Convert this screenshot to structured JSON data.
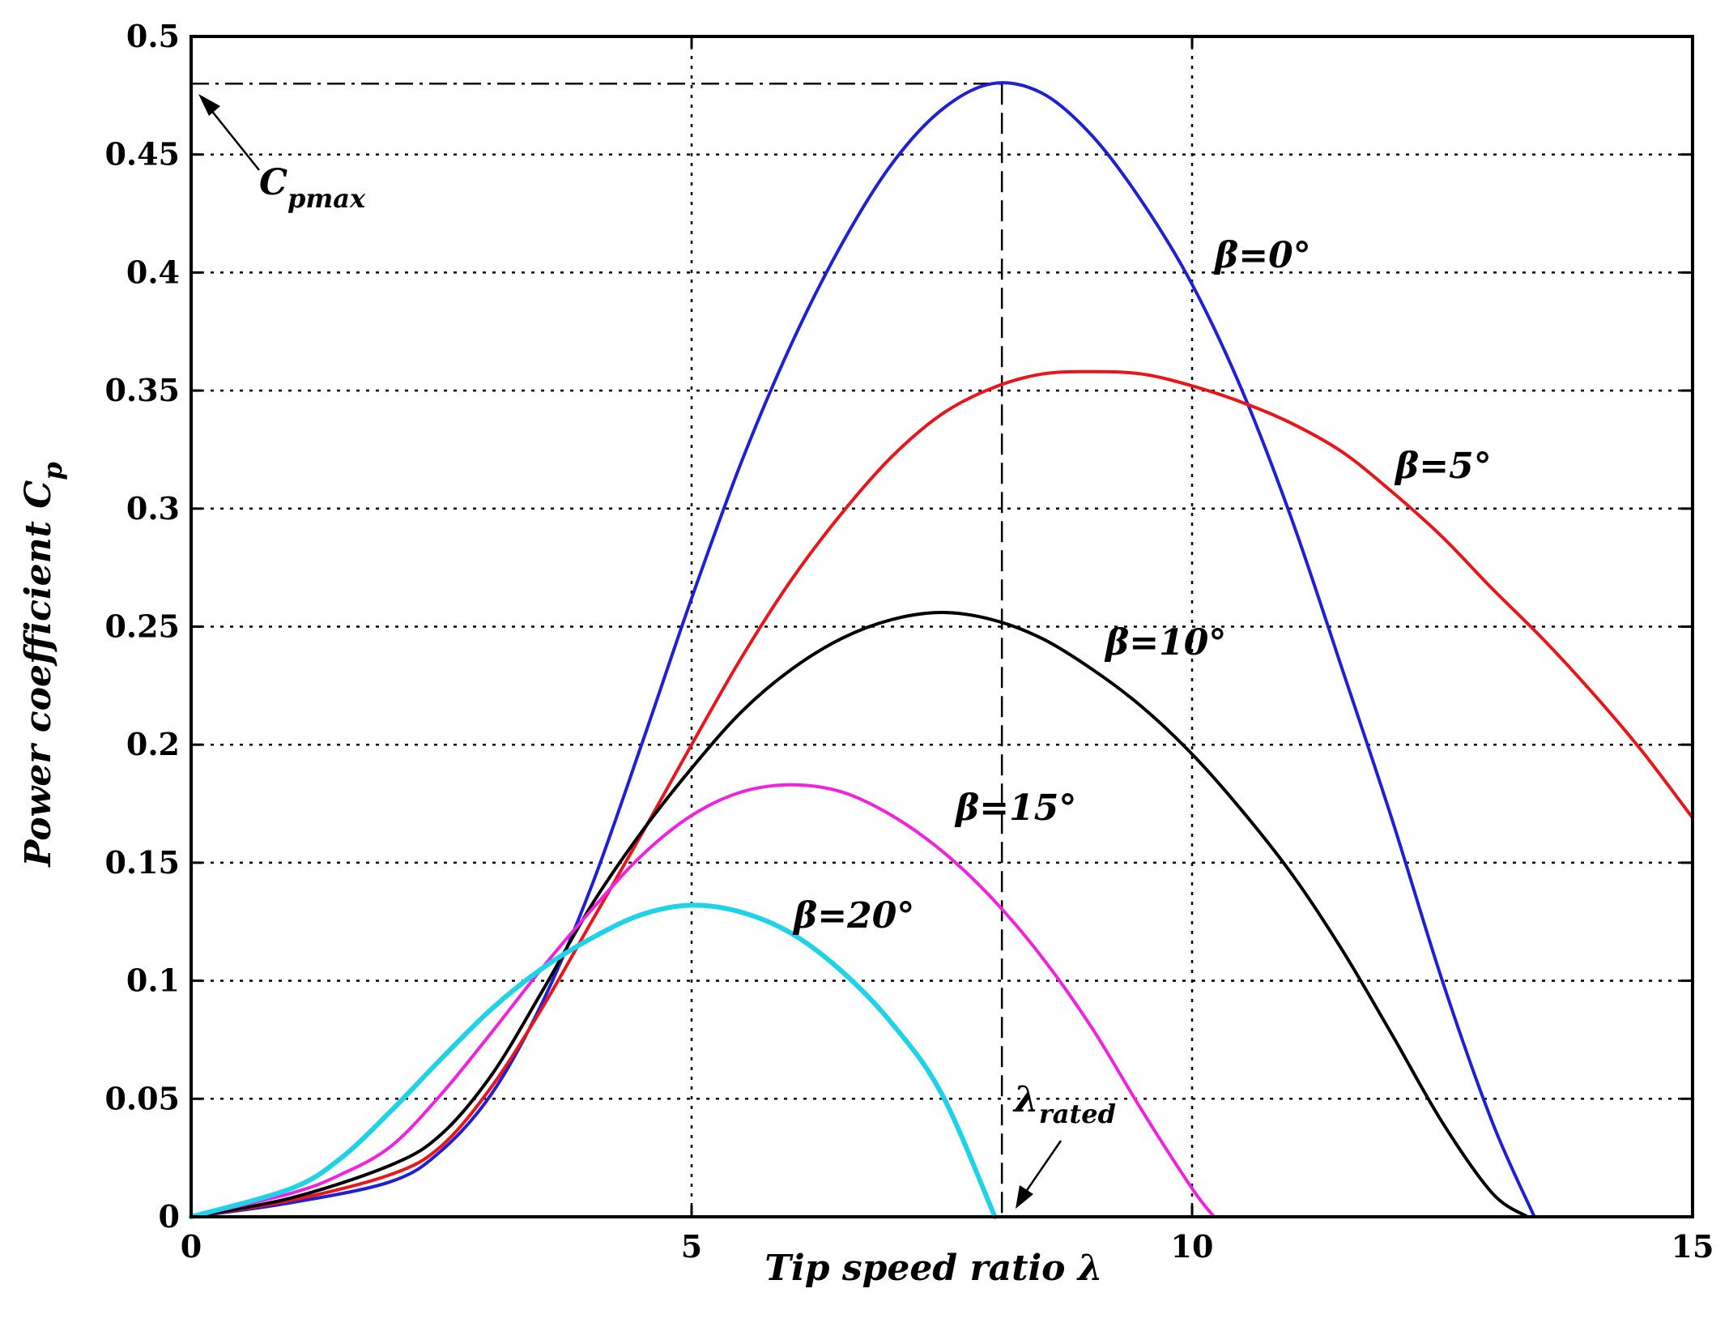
{
  "chart_data": {
    "type": "line",
    "title": "",
    "xlabel": "Tip speed ratio λ",
    "ylabel": "Power coefficient C",
    "ylabel_subscript": "p",
    "xlim": [
      0,
      15
    ],
    "ylim": [
      0,
      0.5
    ],
    "xticks": [
      "0",
      "5",
      "10",
      "15"
    ],
    "yticks": [
      "0",
      "0.05",
      "0.1",
      "0.15",
      "0.2",
      "0.25",
      "0.3",
      "0.35",
      "0.4",
      "0.45",
      "0.5"
    ],
    "xtick_values": [
      0,
      5,
      10,
      15
    ],
    "ytick_values": [
      0,
      0.05,
      0.1,
      0.15,
      0.2,
      0.25,
      0.3,
      0.35,
      0.4,
      0.45,
      0.5
    ],
    "grid": true,
    "series": [
      {
        "name": "β=0°",
        "color": "#1f1fd6",
        "x": [
          0,
          1,
          2,
          2.5,
          3,
          3.5,
          4,
          4.5,
          5,
          5.5,
          6,
          6.5,
          7,
          7.5,
          8,
          8.5,
          9,
          9.5,
          10,
          10.5,
          11,
          11.5,
          12,
          12.5,
          13,
          13.42
        ],
        "y": [
          0,
          0.006,
          0.015,
          0.028,
          0.052,
          0.09,
          0.14,
          0.2,
          0.262,
          0.32,
          0.37,
          0.412,
          0.446,
          0.469,
          0.48,
          0.476,
          0.458,
          0.43,
          0.395,
          0.35,
          0.295,
          0.232,
          0.168,
          0.1,
          0.04,
          0
        ]
      },
      {
        "name": "β=5°",
        "color": "#e8161b",
        "x": [
          0,
          1,
          2,
          2.5,
          3,
          3.5,
          4,
          4.5,
          5,
          5.5,
          6,
          6.5,
          7,
          7.5,
          8,
          8.5,
          9,
          9.5,
          10,
          10.5,
          11,
          11.5,
          12,
          12.5,
          13,
          13.5,
          14,
          14.5,
          15
        ],
        "y": [
          0,
          0.007,
          0.018,
          0.03,
          0.055,
          0.088,
          0.125,
          0.162,
          0.2,
          0.237,
          0.27,
          0.298,
          0.322,
          0.34,
          0.351,
          0.357,
          0.358,
          0.357,
          0.352,
          0.345,
          0.336,
          0.324,
          0.307,
          0.288,
          0.266,
          0.245,
          0.222,
          0.197,
          0.169
        ]
      },
      {
        "name": "β=10°",
        "color": "#000000",
        "x": [
          0,
          1,
          2,
          2.5,
          3,
          3.5,
          4,
          4.5,
          5,
          5.5,
          6,
          6.5,
          7,
          7.5,
          8,
          8.5,
          9,
          9.5,
          10,
          10.5,
          11,
          11.5,
          12,
          12.5,
          13,
          13.35
        ],
        "y": [
          0,
          0.008,
          0.022,
          0.035,
          0.06,
          0.095,
          0.132,
          0.163,
          0.19,
          0.214,
          0.232,
          0.245,
          0.253,
          0.256,
          0.253,
          0.245,
          0.232,
          0.216,
          0.196,
          0.172,
          0.145,
          0.113,
          0.077,
          0.04,
          0.01,
          0
        ]
      },
      {
        "name": "β=15°",
        "color": "#f022e0",
        "x": [
          0,
          1,
          1.5,
          2,
          2.5,
          3,
          3.5,
          4,
          4.5,
          5,
          5.5,
          6,
          6.5,
          7,
          7.5,
          8,
          8.5,
          9,
          9.5,
          10,
          10.22
        ],
        "y": [
          0,
          0.01,
          0.018,
          0.03,
          0.052,
          0.078,
          0.105,
          0.13,
          0.153,
          0.17,
          0.18,
          0.183,
          0.18,
          0.17,
          0.155,
          0.135,
          0.11,
          0.08,
          0.045,
          0.012,
          0
        ]
      },
      {
        "name": "β=20°",
        "color": "#1fd2e8",
        "x": [
          0,
          1,
          1.5,
          2,
          2.5,
          3,
          3.5,
          4,
          4.5,
          5,
          5.5,
          6,
          6.5,
          7,
          7.5,
          8.03
        ],
        "y": [
          0,
          0.012,
          0.025,
          0.045,
          0.067,
          0.088,
          0.105,
          0.118,
          0.128,
          0.132,
          0.129,
          0.12,
          0.104,
          0.082,
          0.052,
          0
        ]
      }
    ],
    "annotations": {
      "beta0": "β=0°",
      "beta5": "β=5°",
      "beta10": "β=10°",
      "beta15": "β=15°",
      "beta20": "β=20°",
      "cpmax_main": "C",
      "cpmax_sub": "pmax",
      "lambda_main": "λ",
      "lambda_sub": "rated"
    },
    "cp_max_value": 0.48,
    "lambda_rated_value": 8.1
  }
}
